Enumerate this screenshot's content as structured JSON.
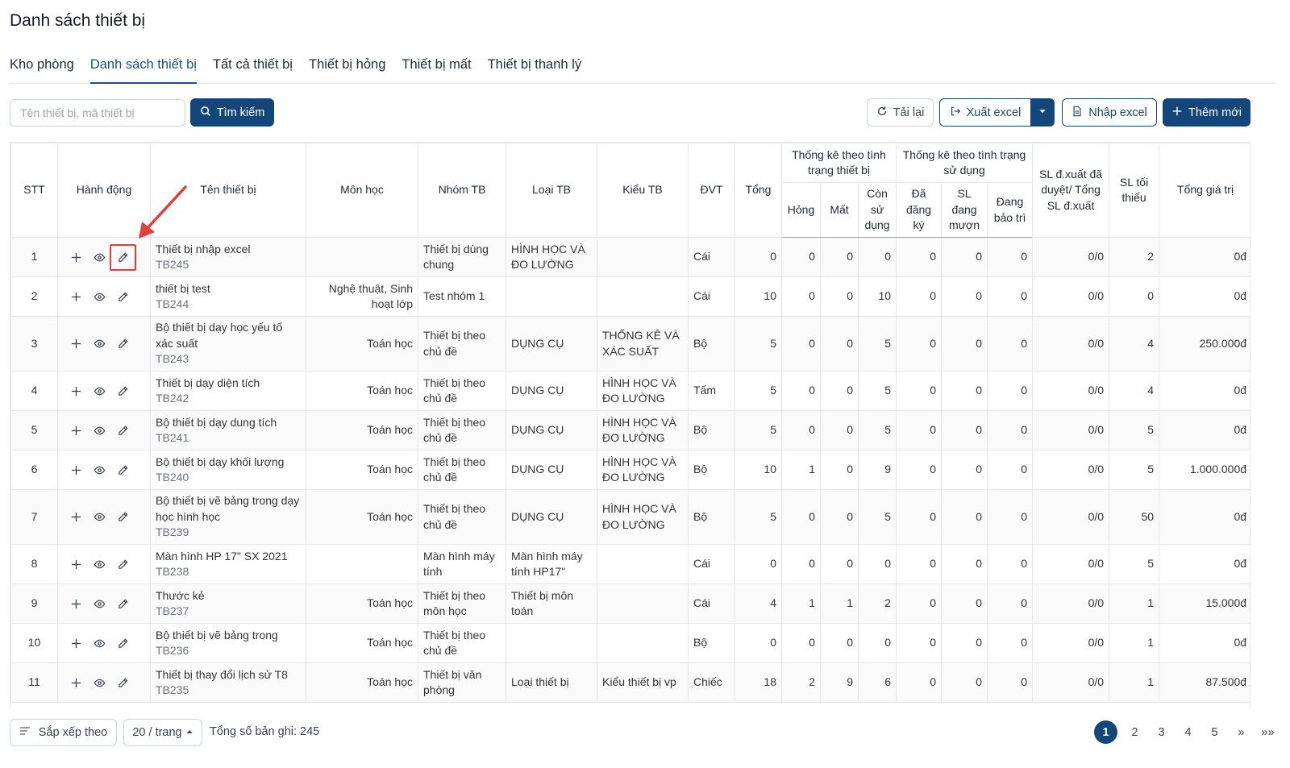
{
  "page_title": "Danh sách thiết bị",
  "tabs": [
    {
      "label": "Kho phòng"
    },
    {
      "label": "Danh sách thiết bị"
    },
    {
      "label": "Tất cả thiết bị"
    },
    {
      "label": "Thiết bị hỏng"
    },
    {
      "label": "Thiết bị mất"
    },
    {
      "label": "Thiết bị thanh lý"
    }
  ],
  "active_tab": 1,
  "toolbar": {
    "search_placeholder": "Tên thiết bị, mã thiết bị",
    "search_label": "Tìm kiếm",
    "reload_label": "Tải lại",
    "export_label": "Xuất excel",
    "import_label": "Nhập excel",
    "add_label": "Thêm mới"
  },
  "table": {
    "headers": {
      "stt": "STT",
      "actions": "Hành động",
      "name": "Tên thiết bị",
      "subject": "Môn học",
      "group": "Nhóm TB",
      "category": "Loại TB",
      "type": "Kiểu TB",
      "unit": "ĐVT",
      "total": "Tổng",
      "status_group": "Thống kê theo tình trạng thiết bị",
      "broken": "Hỏng",
      "lost": "Mất",
      "usable": "Còn sử dụng",
      "usage_group": "Thống kê theo tình trạng sử dụng",
      "registered": "Đã đăng ký",
      "borrowed": "SL đang mượn",
      "maintenance": "Đang bảo trì",
      "exported": "SL đ.xuất đã duyệt/ Tổng SL đ.xuất",
      "minimum": "SL tối thiểu",
      "value": "Tổng giá trị"
    },
    "rows": [
      {
        "stt": "1",
        "name": "Thiết bị nhập excel",
        "code": "TB245",
        "subject": "",
        "group": "Thiết bị dùng chung",
        "category": "HÌNH HỌC VÀ ĐO LƯỜNG",
        "type": "",
        "unit": "Cái",
        "total": "0",
        "broken": "0",
        "lost": "0",
        "usable": "0",
        "registered": "0",
        "borrowed": "0",
        "maintenance": "0",
        "exported": "0/0",
        "minimum": "2",
        "value": "0đ"
      },
      {
        "stt": "2",
        "name": "thiết bị test",
        "code": "TB244",
        "subject": "Nghệ thuật, Sinh hoạt lớp",
        "group": "Test nhóm 1",
        "category": "",
        "type": "",
        "unit": "Cái",
        "total": "10",
        "broken": "0",
        "lost": "0",
        "usable": "10",
        "registered": "0",
        "borrowed": "0",
        "maintenance": "0",
        "exported": "0/0",
        "minimum": "0",
        "value": "0đ"
      },
      {
        "stt": "3",
        "name": "Bộ thiết bị dạy học yếu tố xác suất",
        "code": "TB243",
        "subject": "Toán học",
        "group": "Thiết bị theo chủ đề",
        "category": "DỤNG CỤ",
        "type": "THỐNG KÊ VÀ XÁC SUẤT",
        "unit": "Bộ",
        "total": "5",
        "broken": "0",
        "lost": "0",
        "usable": "5",
        "registered": "0",
        "borrowed": "0",
        "maintenance": "0",
        "exported": "0/0",
        "minimum": "4",
        "value": "250.000đ"
      },
      {
        "stt": "4",
        "name": "Thiết bị dạy diện tích",
        "code": "TB242",
        "subject": "Toán học",
        "group": "Thiết bị theo chủ đề",
        "category": "DỤNG CỤ",
        "type": "HÌNH HỌC VÀ ĐO LƯỜNG",
        "unit": "Tấm",
        "total": "5",
        "broken": "0",
        "lost": "0",
        "usable": "5",
        "registered": "0",
        "borrowed": "0",
        "maintenance": "0",
        "exported": "0/0",
        "minimum": "4",
        "value": "0đ"
      },
      {
        "stt": "5",
        "name": "Bộ thiết bị dạy dung tích",
        "code": "TB241",
        "subject": "Toán học",
        "group": "Thiết bị theo chủ đề",
        "category": "DỤNG CỤ",
        "type": "HÌNH HỌC VÀ ĐO LƯỜNG",
        "unit": "Bộ",
        "total": "5",
        "broken": "0",
        "lost": "0",
        "usable": "5",
        "registered": "0",
        "borrowed": "0",
        "maintenance": "0",
        "exported": "0/0",
        "minimum": "5",
        "value": "0đ"
      },
      {
        "stt": "6",
        "name": "Bộ thiết bị dạy khối lượng",
        "code": "TB240",
        "subject": "Toán học",
        "group": "Thiết bị theo chủ đề",
        "category": "DỤNG CỤ",
        "type": "HÌNH HỌC VÀ ĐO LƯỜNG",
        "unit": "Bộ",
        "total": "10",
        "broken": "1",
        "lost": "0",
        "usable": "9",
        "registered": "0",
        "borrowed": "0",
        "maintenance": "0",
        "exported": "0/0",
        "minimum": "5",
        "value": "1.000.000đ"
      },
      {
        "stt": "7",
        "name": "Bộ thiết bị vẽ bảng trong dạy học hình học",
        "code": "TB239",
        "subject": "Toán học",
        "group": "Thiết bị theo chủ đề",
        "category": "DỤNG CỤ",
        "type": "HÌNH HỌC VÀ ĐO LƯỜNG",
        "unit": "Bộ",
        "total": "5",
        "broken": "0",
        "lost": "0",
        "usable": "5",
        "registered": "0",
        "borrowed": "0",
        "maintenance": "0",
        "exported": "0/0",
        "minimum": "50",
        "value": "0đ"
      },
      {
        "stt": "8",
        "name": "Màn hình HP 17\" SX 2021",
        "code": "TB238",
        "subject": "",
        "group": "Màn hình máy tính",
        "category": "Màn hình máy tính HP17\"",
        "type": "",
        "unit": "Cái",
        "total": "0",
        "broken": "0",
        "lost": "0",
        "usable": "0",
        "registered": "0",
        "borrowed": "0",
        "maintenance": "0",
        "exported": "0/0",
        "minimum": "5",
        "value": "0đ"
      },
      {
        "stt": "9",
        "name": "Thước kẻ",
        "code": "TB237",
        "subject": "Toán học",
        "group": "Thiết bị theo môn học",
        "category": "Thiết bị môn toán",
        "type": "",
        "unit": "Cái",
        "total": "4",
        "broken": "1",
        "lost": "1",
        "usable": "2",
        "registered": "0",
        "borrowed": "0",
        "maintenance": "0",
        "exported": "0/0",
        "minimum": "1",
        "value": "15.000đ"
      },
      {
        "stt": "10",
        "name": "Bộ thiết bị vẽ bảng trong",
        "code": "TB236",
        "subject": "Toán học",
        "group": "Thiết bị theo chủ đề",
        "category": "",
        "type": "",
        "unit": "Bộ",
        "total": "0",
        "broken": "0",
        "lost": "0",
        "usable": "0",
        "registered": "0",
        "borrowed": "0",
        "maintenance": "0",
        "exported": "0/0",
        "minimum": "1",
        "value": "0đ"
      },
      {
        "stt": "11",
        "name": "Thiết bị thay đổi lịch sử T8",
        "code": "TB235",
        "subject": "Toán học",
        "group": "Thiết bị văn phòng",
        "category": "Loại thiết bị",
        "type": "Kiểu thiết bị vp",
        "unit": "Chiếc",
        "total": "18",
        "broken": "2",
        "lost": "9",
        "usable": "6",
        "registered": "0",
        "borrowed": "0",
        "maintenance": "0",
        "exported": "0/0",
        "minimum": "1",
        "value": "87.500đ"
      }
    ]
  },
  "footer": {
    "sort_label": "Sắp xếp theo",
    "page_size_label": "20 / trang",
    "total_label": "Tổng số bản ghi: 245",
    "pages": [
      "1",
      "2",
      "3",
      "4",
      "5"
    ],
    "active_page": "1",
    "next_label": "»",
    "last_label": "»»"
  },
  "icons": {
    "add": "plus-icon",
    "view": "eye-icon",
    "edit": "pencil-icon",
    "search": "search-icon",
    "reload": "reload-icon",
    "export": "export-icon",
    "import": "document-icon",
    "sort": "sort-lines-icon",
    "dropdown": "caret-down-icon"
  },
  "colors": {
    "primary": "#14467a",
    "highlight": "#e0403b"
  }
}
